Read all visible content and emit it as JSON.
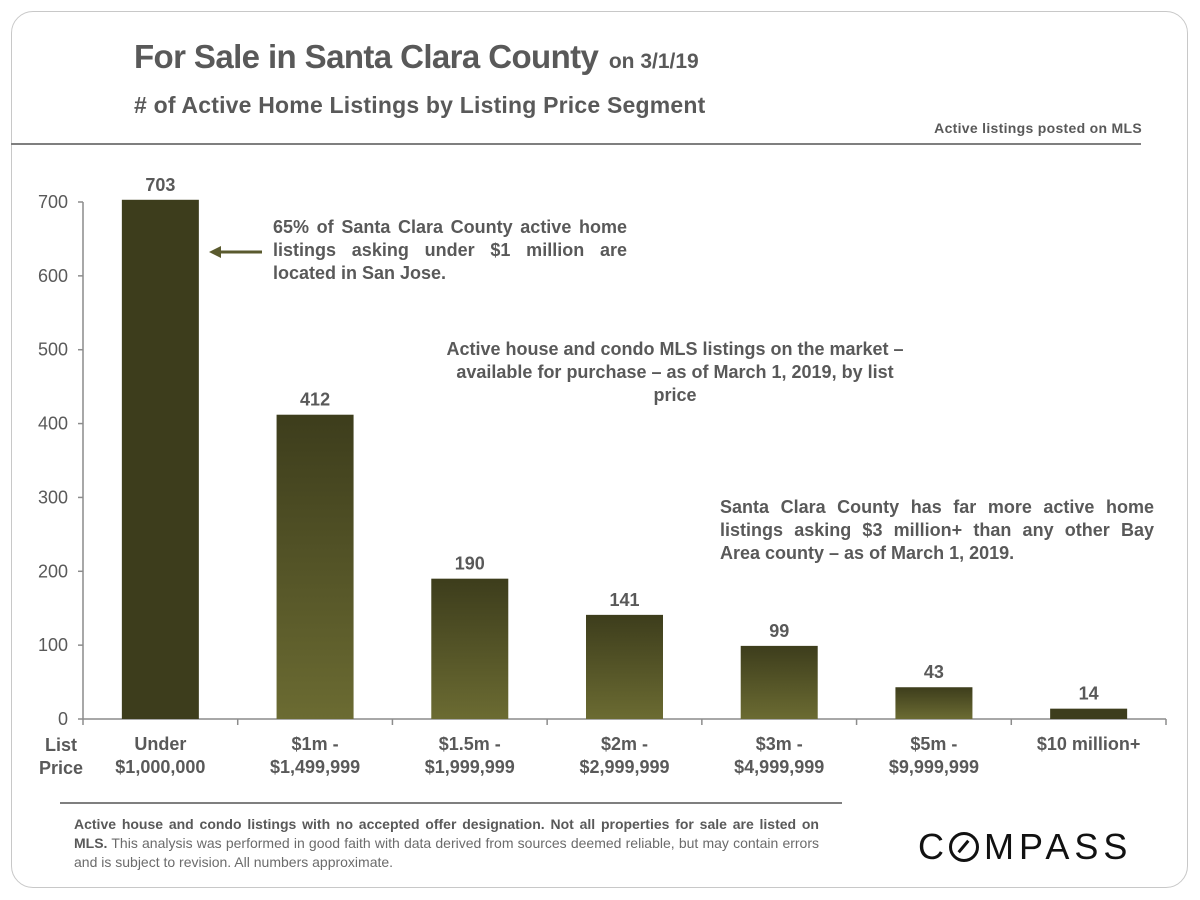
{
  "header": {
    "title": "For Sale in Santa Clara County",
    "title_suffix": "on 3/1/19",
    "subtitle": "# of Active Home Listings by Listing Price Segment",
    "source_note": "Active listings  posted on MLS"
  },
  "annotations": {
    "san_jose": "65% of Santa Clara County active home listings asking under $1 million are located in San Jose.",
    "description": "Active house and condo MLS listings on the market – available for purchase – as of March 1, 2019, by list price",
    "luxury": "Santa Clara County has far more active home listings asking $3 million+ than any other Bay Area county – as of March 1, 2019."
  },
  "arrow_icon": "left-arrow-icon",
  "x_axis_title": [
    "List",
    "Price"
  ],
  "footnote": {
    "bold": "Active house and condo listings with no accepted offer designation. Not all properties for sale are listed on MLS.",
    "normal": " This analysis was performed in good faith with data derived from sources deemed reliable, but may contain errors and is subject to revision. All numbers approximate."
  },
  "logo": {
    "text_pre": "C",
    "text_post": "MPASS",
    "name": "COMPASS"
  },
  "colors": {
    "bar_dark": "#3d3d1c",
    "bar_light": "#6b6b32",
    "text": "#595959",
    "axis": "#8c8c8c",
    "arrow": "#5a5a2e"
  },
  "chart_data": {
    "type": "bar",
    "title": "For Sale in Santa Clara County on 3/1/19",
    "subtitle": "# of Active Home Listings by Listing Price Segment",
    "xlabel": "List Price",
    "ylabel": "",
    "ylim": [
      0,
      700
    ],
    "yticks": [
      0,
      100,
      200,
      300,
      400,
      500,
      600,
      700
    ],
    "grid": false,
    "categories": [
      [
        "Under",
        "$1,000,000"
      ],
      [
        "$1m -",
        "$1,499,999"
      ],
      [
        "$1.5m -",
        "$1,999,999"
      ],
      [
        "$2m -",
        "$2,999,999"
      ],
      [
        "$3m -",
        "$4,999,999"
      ],
      [
        "$5m -",
        "$9,999,999"
      ],
      [
        "$10 million+"
      ]
    ],
    "values": [
      703,
      412,
      190,
      141,
      99,
      43,
      14
    ],
    "bar_styles": [
      "solid-dark",
      "gradient",
      "gradient",
      "gradient",
      "gradient",
      "gradient",
      "solid-dark"
    ],
    "data_labels": [
      "703",
      "412",
      "190",
      "141",
      "99",
      "43",
      "14"
    ]
  }
}
